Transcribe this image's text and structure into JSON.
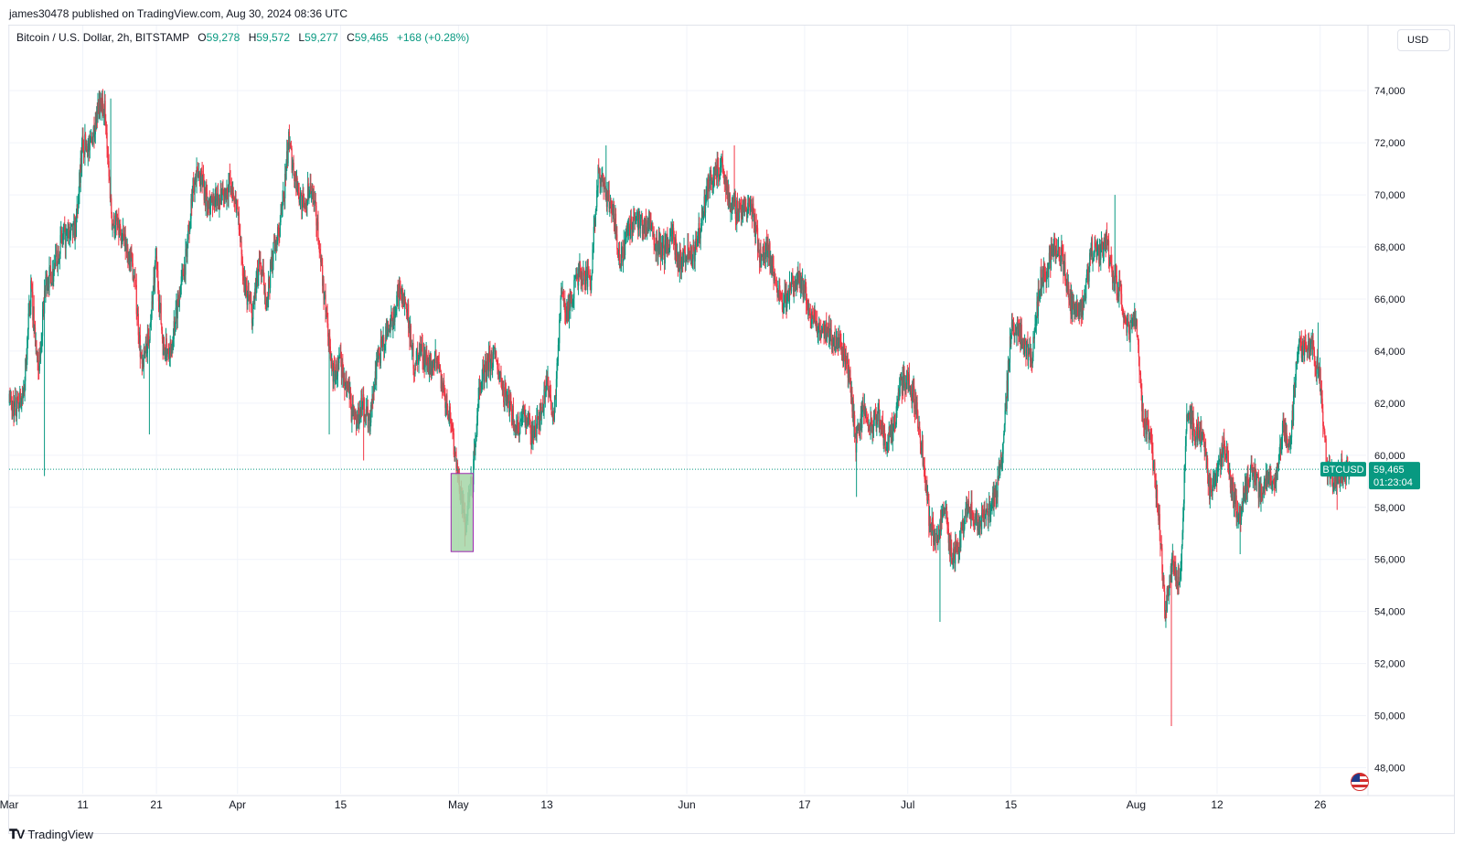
{
  "header": {
    "published_by": "james30478 published on TradingView.com, Aug 30, 2024 08:36 UTC"
  },
  "legend": {
    "symbol": "Bitcoin / U.S. Dollar, 2h, BITSTAMP",
    "open_label": "O",
    "open": "59,278",
    "high_label": "H",
    "high": "59,572",
    "low_label": "L",
    "low": "59,277",
    "close_label": "C",
    "close": "59,465",
    "change": "+168 (+0.28%)"
  },
  "currency_button": {
    "label": "USD"
  },
  "price_tag": {
    "ticker": "BTCUSD",
    "price": "59,465",
    "countdown": "01:23:04"
  },
  "footer": {
    "brand": "TradingView"
  },
  "colors": {
    "up": "#089981",
    "down": "#f23645",
    "highlight_fill": "#a5d6a7",
    "highlight_border": "#9c27b0",
    "accent": "#089981"
  },
  "chart_data": {
    "type": "candlestick",
    "title": "Bitcoin / U.S. Dollar, 2h, BITSTAMP",
    "ylim": [
      47000,
      76500
    ],
    "y_ticks": [
      "74,000",
      "72,000",
      "70,000",
      "68,000",
      "66,000",
      "64,000",
      "62,000",
      "60,000",
      "58,000",
      "56,000",
      "54,000",
      "52,000",
      "50,000",
      "48,000"
    ],
    "x_ticks": [
      "Mar",
      "11",
      "21",
      "Apr",
      "15",
      "May",
      "13",
      "Jun",
      "17",
      "Jul",
      "15",
      "Aug",
      "12",
      "26"
    ],
    "x_tick_dates": [
      "2024-03-01",
      "2024-03-11",
      "2024-03-21",
      "2024-04-01",
      "2024-04-15",
      "2024-05-01",
      "2024-05-13",
      "2024-06-01",
      "2024-06-17",
      "2024-07-01",
      "2024-07-15",
      "2024-08-01",
      "2024-08-12",
      "2024-08-26"
    ],
    "x_range": [
      "2024-03-01",
      "2024-08-30"
    ],
    "current_price": 59465,
    "close_path": [
      [
        "2024-03-01",
        62000
      ],
      [
        "2024-03-02",
        61800
      ],
      [
        "2024-03-03",
        62300
      ],
      [
        "2024-03-04",
        66500
      ],
      [
        "2024-03-05",
        63000
      ],
      [
        "2024-03-06",
        66700
      ],
      [
        "2024-03-07",
        67000
      ],
      [
        "2024-03-08",
        68200
      ],
      [
        "2024-03-09",
        68400
      ],
      [
        "2024-03-10",
        68600
      ],
      [
        "2024-03-11",
        72000
      ],
      [
        "2024-03-12",
        71800
      ],
      [
        "2024-03-13",
        73200
      ],
      [
        "2024-03-14",
        73500
      ],
      [
        "2024-03-15",
        69000
      ],
      [
        "2024-03-16",
        68600
      ],
      [
        "2024-03-17",
        68000
      ],
      [
        "2024-03-18",
        67000
      ],
      [
        "2024-03-19",
        63500
      ],
      [
        "2024-03-20",
        64500
      ],
      [
        "2024-03-21",
        67500
      ],
      [
        "2024-03-22",
        64000
      ],
      [
        "2024-03-23",
        64200
      ],
      [
        "2024-03-24",
        66000
      ],
      [
        "2024-03-25",
        67500
      ],
      [
        "2024-03-26",
        70500
      ],
      [
        "2024-03-27",
        70800
      ],
      [
        "2024-03-28",
        69500
      ],
      [
        "2024-03-29",
        70000
      ],
      [
        "2024-03-30",
        69800
      ],
      [
        "2024-03-31",
        70500
      ],
      [
        "2024-04-01",
        69500
      ],
      [
        "2024-04-02",
        66500
      ],
      [
        "2024-04-03",
        65500
      ],
      [
        "2024-04-04",
        67500
      ],
      [
        "2024-04-05",
        66000
      ],
      [
        "2024-04-06",
        68000
      ],
      [
        "2024-04-07",
        69000
      ],
      [
        "2024-04-08",
        72000
      ],
      [
        "2024-04-09",
        70500
      ],
      [
        "2024-04-10",
        69500
      ],
      [
        "2024-04-11",
        70500
      ],
      [
        "2024-04-12",
        68500
      ],
      [
        "2024-04-13",
        65500
      ],
      [
        "2024-04-14",
        63000
      ],
      [
        "2024-04-15",
        63500
      ],
      [
        "2024-04-16",
        62500
      ],
      [
        "2024-04-17",
        61000
      ],
      [
        "2024-04-18",
        62000
      ],
      [
        "2024-04-19",
        61300
      ],
      [
        "2024-04-20",
        63500
      ],
      [
        "2024-04-21",
        64500
      ],
      [
        "2024-04-22",
        65000
      ],
      [
        "2024-04-23",
        66200
      ],
      [
        "2024-04-24",
        65800
      ],
      [
        "2024-04-25",
        63500
      ],
      [
        "2024-04-26",
        64000
      ],
      [
        "2024-04-27",
        63500
      ],
      [
        "2024-04-28",
        63800
      ],
      [
        "2024-04-29",
        62500
      ],
      [
        "2024-04-30",
        61500
      ],
      [
        "2024-05-01",
        59000
      ],
      [
        "2024-05-02",
        57500
      ],
      [
        "2024-05-03",
        59300
      ],
      [
        "2024-05-04",
        62800
      ],
      [
        "2024-05-05",
        63500
      ],
      [
        "2024-05-06",
        63800
      ],
      [
        "2024-05-07",
        62500
      ],
      [
        "2024-05-08",
        62000
      ],
      [
        "2024-05-09",
        61000
      ],
      [
        "2024-05-10",
        61500
      ],
      [
        "2024-05-11",
        60800
      ],
      [
        "2024-05-12",
        61200
      ],
      [
        "2024-05-13",
        62800
      ],
      [
        "2024-05-14",
        61500
      ],
      [
        "2024-05-15",
        66000
      ],
      [
        "2024-05-16",
        65500
      ],
      [
        "2024-05-17",
        66800
      ],
      [
        "2024-05-18",
        67000
      ],
      [
        "2024-05-19",
        66500
      ],
      [
        "2024-05-20",
        71000
      ],
      [
        "2024-05-21",
        70000
      ],
      [
        "2024-05-22",
        69500
      ],
      [
        "2024-05-23",
        67500
      ],
      [
        "2024-05-24",
        68500
      ],
      [
        "2024-05-25",
        69300
      ],
      [
        "2024-05-26",
        68800
      ],
      [
        "2024-05-27",
        69000
      ],
      [
        "2024-05-28",
        68000
      ],
      [
        "2024-05-29",
        67800
      ],
      [
        "2024-05-30",
        68500
      ],
      [
        "2024-05-31",
        67500
      ],
      [
        "2024-06-01",
        67700
      ],
      [
        "2024-06-02",
        67800
      ],
      [
        "2024-06-03",
        68800
      ],
      [
        "2024-06-04",
        70500
      ],
      [
        "2024-06-05",
        71100
      ],
      [
        "2024-06-06",
        71000
      ],
      [
        "2024-06-07",
        69500
      ],
      [
        "2024-06-08",
        69400
      ],
      [
        "2024-06-09",
        69600
      ],
      [
        "2024-06-10",
        69500
      ],
      [
        "2024-06-11",
        67500
      ],
      [
        "2024-06-12",
        68000
      ],
      [
        "2024-06-13",
        66800
      ],
      [
        "2024-06-14",
        66000
      ],
      [
        "2024-06-15",
        66200
      ],
      [
        "2024-06-16",
        66600
      ],
      [
        "2024-06-17",
        66500
      ],
      [
        "2024-06-18",
        65200
      ],
      [
        "2024-06-19",
        65000
      ],
      [
        "2024-06-20",
        64900
      ],
      [
        "2024-06-21",
        64200
      ],
      [
        "2024-06-22",
        64300
      ],
      [
        "2024-06-23",
        63300
      ],
      [
        "2024-06-24",
        60500
      ],
      [
        "2024-06-25",
        61800
      ],
      [
        "2024-06-26",
        61000
      ],
      [
        "2024-06-27",
        61600
      ],
      [
        "2024-06-28",
        60500
      ],
      [
        "2024-06-29",
        60800
      ],
      [
        "2024-06-30",
        62700
      ],
      [
        "2024-07-01",
        62900
      ],
      [
        "2024-07-02",
        62100
      ],
      [
        "2024-07-03",
        60200
      ],
      [
        "2024-07-04",
        57500
      ],
      [
        "2024-07-05",
        56700
      ],
      [
        "2024-07-06",
        58200
      ],
      [
        "2024-07-07",
        56000
      ],
      [
        "2024-07-08",
        56600
      ],
      [
        "2024-07-09",
        57900
      ],
      [
        "2024-07-10",
        57800
      ],
      [
        "2024-07-11",
        57300
      ],
      [
        "2024-07-12",
        57900
      ],
      [
        "2024-07-13",
        58500
      ],
      [
        "2024-07-14",
        60500
      ],
      [
        "2024-07-15",
        64600
      ],
      [
        "2024-07-16",
        65000
      ],
      [
        "2024-07-17",
        64000
      ],
      [
        "2024-07-18",
        63900
      ],
      [
        "2024-07-19",
        66700
      ],
      [
        "2024-07-20",
        67100
      ],
      [
        "2024-07-21",
        68000
      ],
      [
        "2024-07-22",
        67600
      ],
      [
        "2024-07-23",
        65900
      ],
      [
        "2024-07-24",
        65400
      ],
      [
        "2024-07-25",
        65800
      ],
      [
        "2024-07-26",
        67900
      ],
      [
        "2024-07-27",
        67800
      ],
      [
        "2024-07-28",
        68200
      ],
      [
        "2024-07-29",
        66800
      ],
      [
        "2024-07-30",
        66200
      ],
      [
        "2024-07-31",
        64600
      ],
      [
        "2024-08-01",
        65300
      ],
      [
        "2024-08-02",
        61500
      ],
      [
        "2024-08-03",
        60700
      ],
      [
        "2024-08-04",
        58100
      ],
      [
        "2024-08-05",
        54000
      ],
      [
        "2024-08-06",
        56000
      ],
      [
        "2024-08-07",
        55100
      ],
      [
        "2024-08-08",
        61700
      ],
      [
        "2024-08-09",
        60900
      ],
      [
        "2024-08-10",
        60900
      ],
      [
        "2024-08-11",
        58700
      ],
      [
        "2024-08-12",
        59300
      ],
      [
        "2024-08-13",
        60600
      ],
      [
        "2024-08-14",
        58700
      ],
      [
        "2024-08-15",
        57600
      ],
      [
        "2024-08-16",
        58900
      ],
      [
        "2024-08-17",
        59500
      ],
      [
        "2024-08-18",
        58400
      ],
      [
        "2024-08-19",
        59400
      ],
      [
        "2024-08-20",
        59000
      ],
      [
        "2024-08-21",
        61100
      ],
      [
        "2024-08-22",
        60400
      ],
      [
        "2024-08-23",
        64200
      ],
      [
        "2024-08-24",
        64100
      ],
      [
        "2024-08-25",
        64200
      ],
      [
        "2024-08-26",
        62900
      ],
      [
        "2024-08-27",
        59400
      ],
      [
        "2024-08-28",
        59100
      ],
      [
        "2024-08-29",
        59500
      ],
      [
        "2024-08-30",
        59465
      ]
    ],
    "lows": [
      [
        "2024-03-05",
        59200
      ],
      [
        "2024-03-20",
        60800
      ],
      [
        "2024-04-13",
        60800
      ],
      [
        "2024-04-18",
        59800
      ],
      [
        "2024-05-01",
        56500
      ],
      [
        "2024-06-24",
        58400
      ],
      [
        "2024-07-05",
        53600
      ],
      [
        "2024-08-05",
        49600
      ],
      [
        "2024-08-15",
        56200
      ],
      [
        "2024-08-28",
        57900
      ]
    ],
    "highs": [
      [
        "2024-03-14",
        73700
      ],
      [
        "2024-04-08",
        72700
      ],
      [
        "2024-05-21",
        71900
      ],
      [
        "2024-06-07",
        71900
      ],
      [
        "2024-07-29",
        70000
      ],
      [
        "2024-08-25",
        65100
      ]
    ],
    "highlight_box": {
      "from": "2024-04-30",
      "to": "2024-05-03",
      "low": 56300,
      "high": 59300
    }
  }
}
